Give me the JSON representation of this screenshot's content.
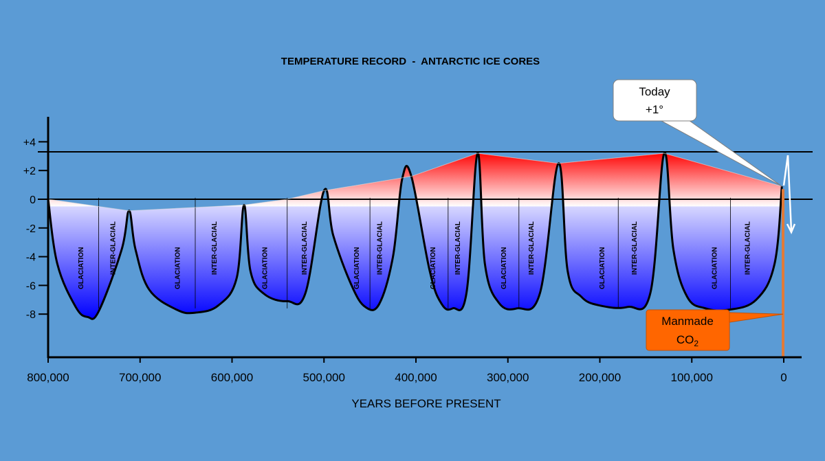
{
  "chart_data": {
    "type": "area",
    "title": "TEMPERATURE RECORD  -  ANTARCTIC ICE CORES",
    "xlabel": "YEARS BEFORE PRESENT",
    "ylabel": "",
    "x_ticks": [
      800000,
      700000,
      600000,
      500000,
      400000,
      300000,
      200000,
      100000,
      0
    ],
    "x_tick_labels": [
      "800,000",
      "700,000",
      "600,000",
      "500,000",
      "400,000",
      "300,000",
      "200,000",
      "100,000",
      "0"
    ],
    "y_ticks": [
      4,
      2,
      0,
      -2,
      -4,
      -6,
      -8
    ],
    "y_tick_labels": [
      "+4",
      "+2",
      "0",
      "-2",
      "-4",
      "-6",
      "-8"
    ],
    "xlim": [
      800000,
      -5000
    ],
    "ylim": [
      -11,
      5.5
    ],
    "reference_lines": [
      3.3,
      0
    ],
    "temperature_curve": [
      [
        800000,
        0
      ],
      [
        790000,
        -4.5
      ],
      [
        770000,
        -7.5
      ],
      [
        757000,
        -8.2
      ],
      [
        745000,
        -7.8
      ],
      [
        720000,
        -3.5
      ],
      [
        712000,
        -0.8
      ],
      [
        705000,
        -3.5
      ],
      [
        690000,
        -6.3
      ],
      [
        660000,
        -7.7
      ],
      [
        640000,
        -7.9
      ],
      [
        615000,
        -7.4
      ],
      [
        595000,
        -5.5
      ],
      [
        587000,
        -0.4
      ],
      [
        580000,
        -5.0
      ],
      [
        565000,
        -6.6
      ],
      [
        540000,
        -7.1
      ],
      [
        520000,
        -6.5
      ],
      [
        500000,
        0.6
      ],
      [
        490000,
        -2.5
      ],
      [
        470000,
        -6.0
      ],
      [
        455000,
        -7.5
      ],
      [
        440000,
        -7.3
      ],
      [
        425000,
        -4.0
      ],
      [
        415000,
        1.4
      ],
      [
        405000,
        1.6
      ],
      [
        385000,
        -5.0
      ],
      [
        372000,
        -7.3
      ],
      [
        360000,
        -7.6
      ],
      [
        345000,
        -6.5
      ],
      [
        333000,
        3.2
      ],
      [
        325000,
        -4.5
      ],
      [
        310000,
        -7.2
      ],
      [
        290000,
        -7.6
      ],
      [
        265000,
        -6.5
      ],
      [
        245000,
        2.5
      ],
      [
        235000,
        -5.0
      ],
      [
        220000,
        -6.8
      ],
      [
        200000,
        -7.4
      ],
      [
        170000,
        -7.5
      ],
      [
        145000,
        -6.5
      ],
      [
        130000,
        3.2
      ],
      [
        120000,
        -3.5
      ],
      [
        105000,
        -6.8
      ],
      [
        85000,
        -7.6
      ],
      [
        60000,
        -7.7
      ],
      [
        30000,
        -7.0
      ],
      [
        10000,
        -4.5
      ],
      [
        2000,
        0.9
      ]
    ],
    "warm_envelope": [
      [
        800000,
        0
      ],
      [
        712000,
        -0.8
      ],
      [
        587000,
        -0.4
      ],
      [
        540000,
        0
      ],
      [
        500000,
        0.6
      ],
      [
        405000,
        1.6
      ],
      [
        333000,
        3.2
      ],
      [
        245000,
        2.5
      ],
      [
        130000,
        3.2
      ],
      [
        2000,
        0.9
      ]
    ],
    "cycles": [
      {
        "glaciation_label": "GLACIATION",
        "interglacial_label": "INTER-GLACIAL",
        "glaciation_x": 765000,
        "divider_x": 745000,
        "interglacial_x": 730000
      },
      {
        "glaciation_label": "GLACIATION",
        "interglacial_label": "INTER-GLACIAL",
        "glaciation_x": 660000,
        "divider_x": 640000,
        "interglacial_x": 620000
      },
      {
        "glaciation_label": "GLACIATION",
        "interglacial_label": "INTER-GLACIAL",
        "glaciation_x": 565000,
        "divider_x": 540000,
        "interglacial_x": 522000
      },
      {
        "glaciation_label": "GLACIATION",
        "interglacial_label": "INTER-GLACIAL",
        "glaciation_x": 465000,
        "divider_x": 450000,
        "interglacial_x": 440000
      },
      {
        "glaciation_label": "GLACIATION",
        "interglacial_label": "INTER-GLACIAL",
        "glaciation_x": 382000,
        "divider_x": 365000,
        "interglacial_x": 355000
      },
      {
        "glaciation_label": "GLACIATION",
        "interglacial_label": "INTER-GLACIAL",
        "glaciation_x": 305000,
        "divider_x": 288000,
        "interglacial_x": 275000
      },
      {
        "glaciation_label": "GLACIATION",
        "interglacial_label": "INTER-GLACIAL",
        "glaciation_x": 198000,
        "divider_x": 180000,
        "interglacial_x": 163000
      },
      {
        "glaciation_label": "GLACIATION",
        "interglacial_label": "INTER-GLACIAL",
        "glaciation_x": 76000,
        "divider_x": 58000,
        "interglacial_x": 40000
      }
    ],
    "callouts": {
      "today": {
        "line1": "Today",
        "line2": "+1°",
        "x": 2000,
        "y": 0.9
      },
      "co2": {
        "line1": "Manmade",
        "line2_main": "CO",
        "line2_sub": "2",
        "x": 0,
        "y": -8
      }
    },
    "grid": false,
    "colors": {
      "background": "#5b9bd5",
      "warm": "#ff0000",
      "neutral": "#ffffff",
      "cold": "#0000ff",
      "co2_fill": "#ff6600",
      "co2_line": "#e07b39"
    }
  }
}
